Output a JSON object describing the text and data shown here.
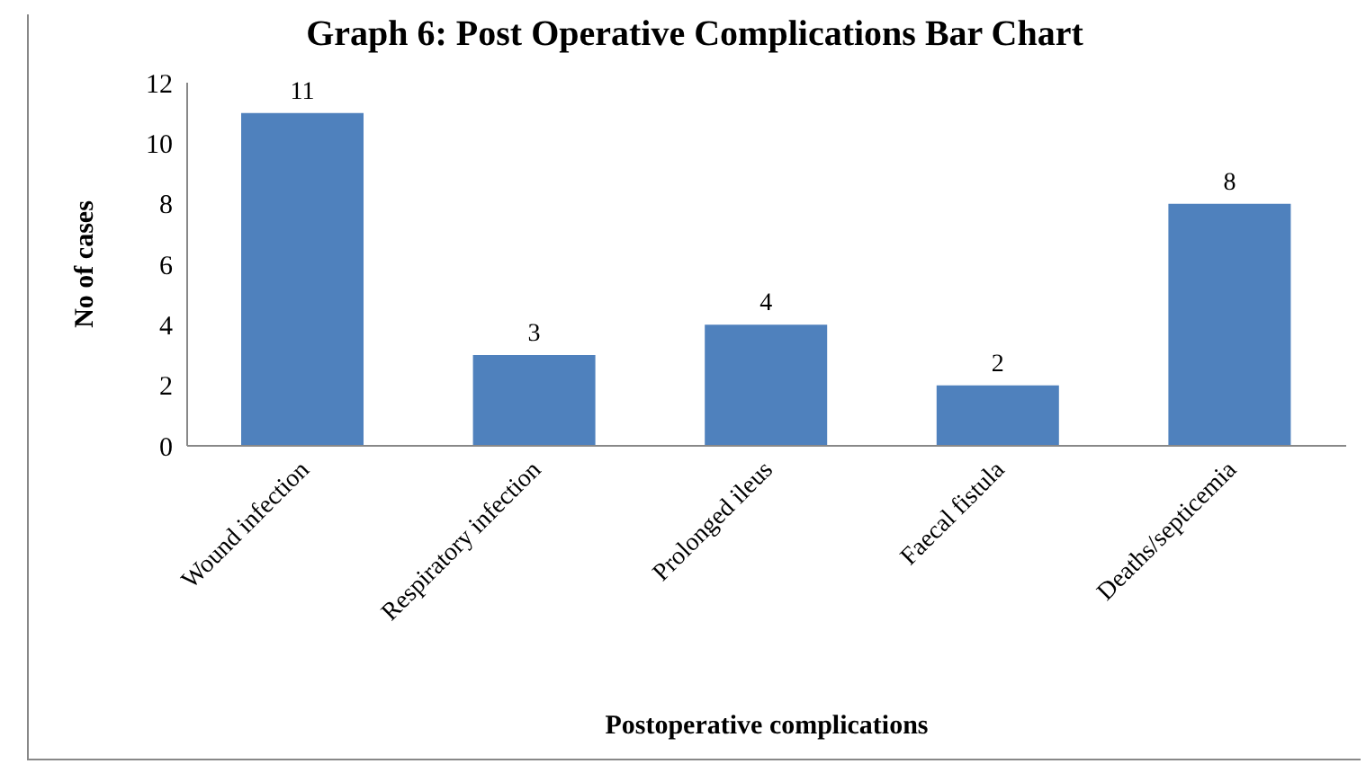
{
  "chart_data": {
    "type": "bar",
    "title": "Graph 6: Post Operative Complications Bar Chart",
    "xlabel": "Postoperative complications",
    "ylabel": "No of cases",
    "categories": [
      "Wound infection",
      "Respiratory infection",
      "Prolonged ileus",
      "Faecal fistula",
      "Deaths/septicemia"
    ],
    "values": [
      11,
      3,
      4,
      2,
      8
    ],
    "color": "#4f81bd",
    "ylim": [
      0,
      12
    ],
    "yticks": [
      0,
      2,
      4,
      6,
      8,
      10,
      12
    ],
    "data_labels": true,
    "grid": false
  }
}
